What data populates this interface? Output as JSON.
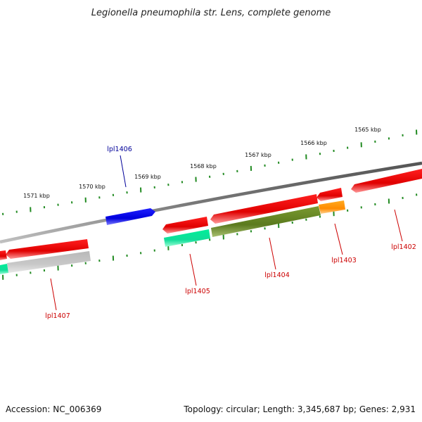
{
  "title": "Legionella pneumophila str. Lens, complete genome",
  "footer": {
    "accession": "Accession: NC_006369",
    "summary": "Topology: circular; Length: 3,345,687 bp; Genes: 2,931"
  },
  "scale_labels": [
    "1565 kbp",
    "1566 kbp",
    "1567 kbp",
    "1568 kbp",
    "1569 kbp",
    "1570 kbp",
    "1571 kbp"
  ],
  "gene_labels": [
    "lpl1402",
    "lpl1403",
    "lpl1404",
    "lpl1405",
    "lpl1406",
    "lpl1407"
  ],
  "colors": {
    "forward_gene": "#ff0000",
    "reverse_gene": "#ff0000",
    "rna_gene": "#0000ff",
    "cog_green": "#00ff99",
    "cog_olive": "#6b8e23",
    "cog_orange": "#ff9900",
    "cog_grey": "#cccccc",
    "backbone": "#808080",
    "tick": "#228b22",
    "label_red": "#cc0000",
    "label_blue": "#000099"
  }
}
